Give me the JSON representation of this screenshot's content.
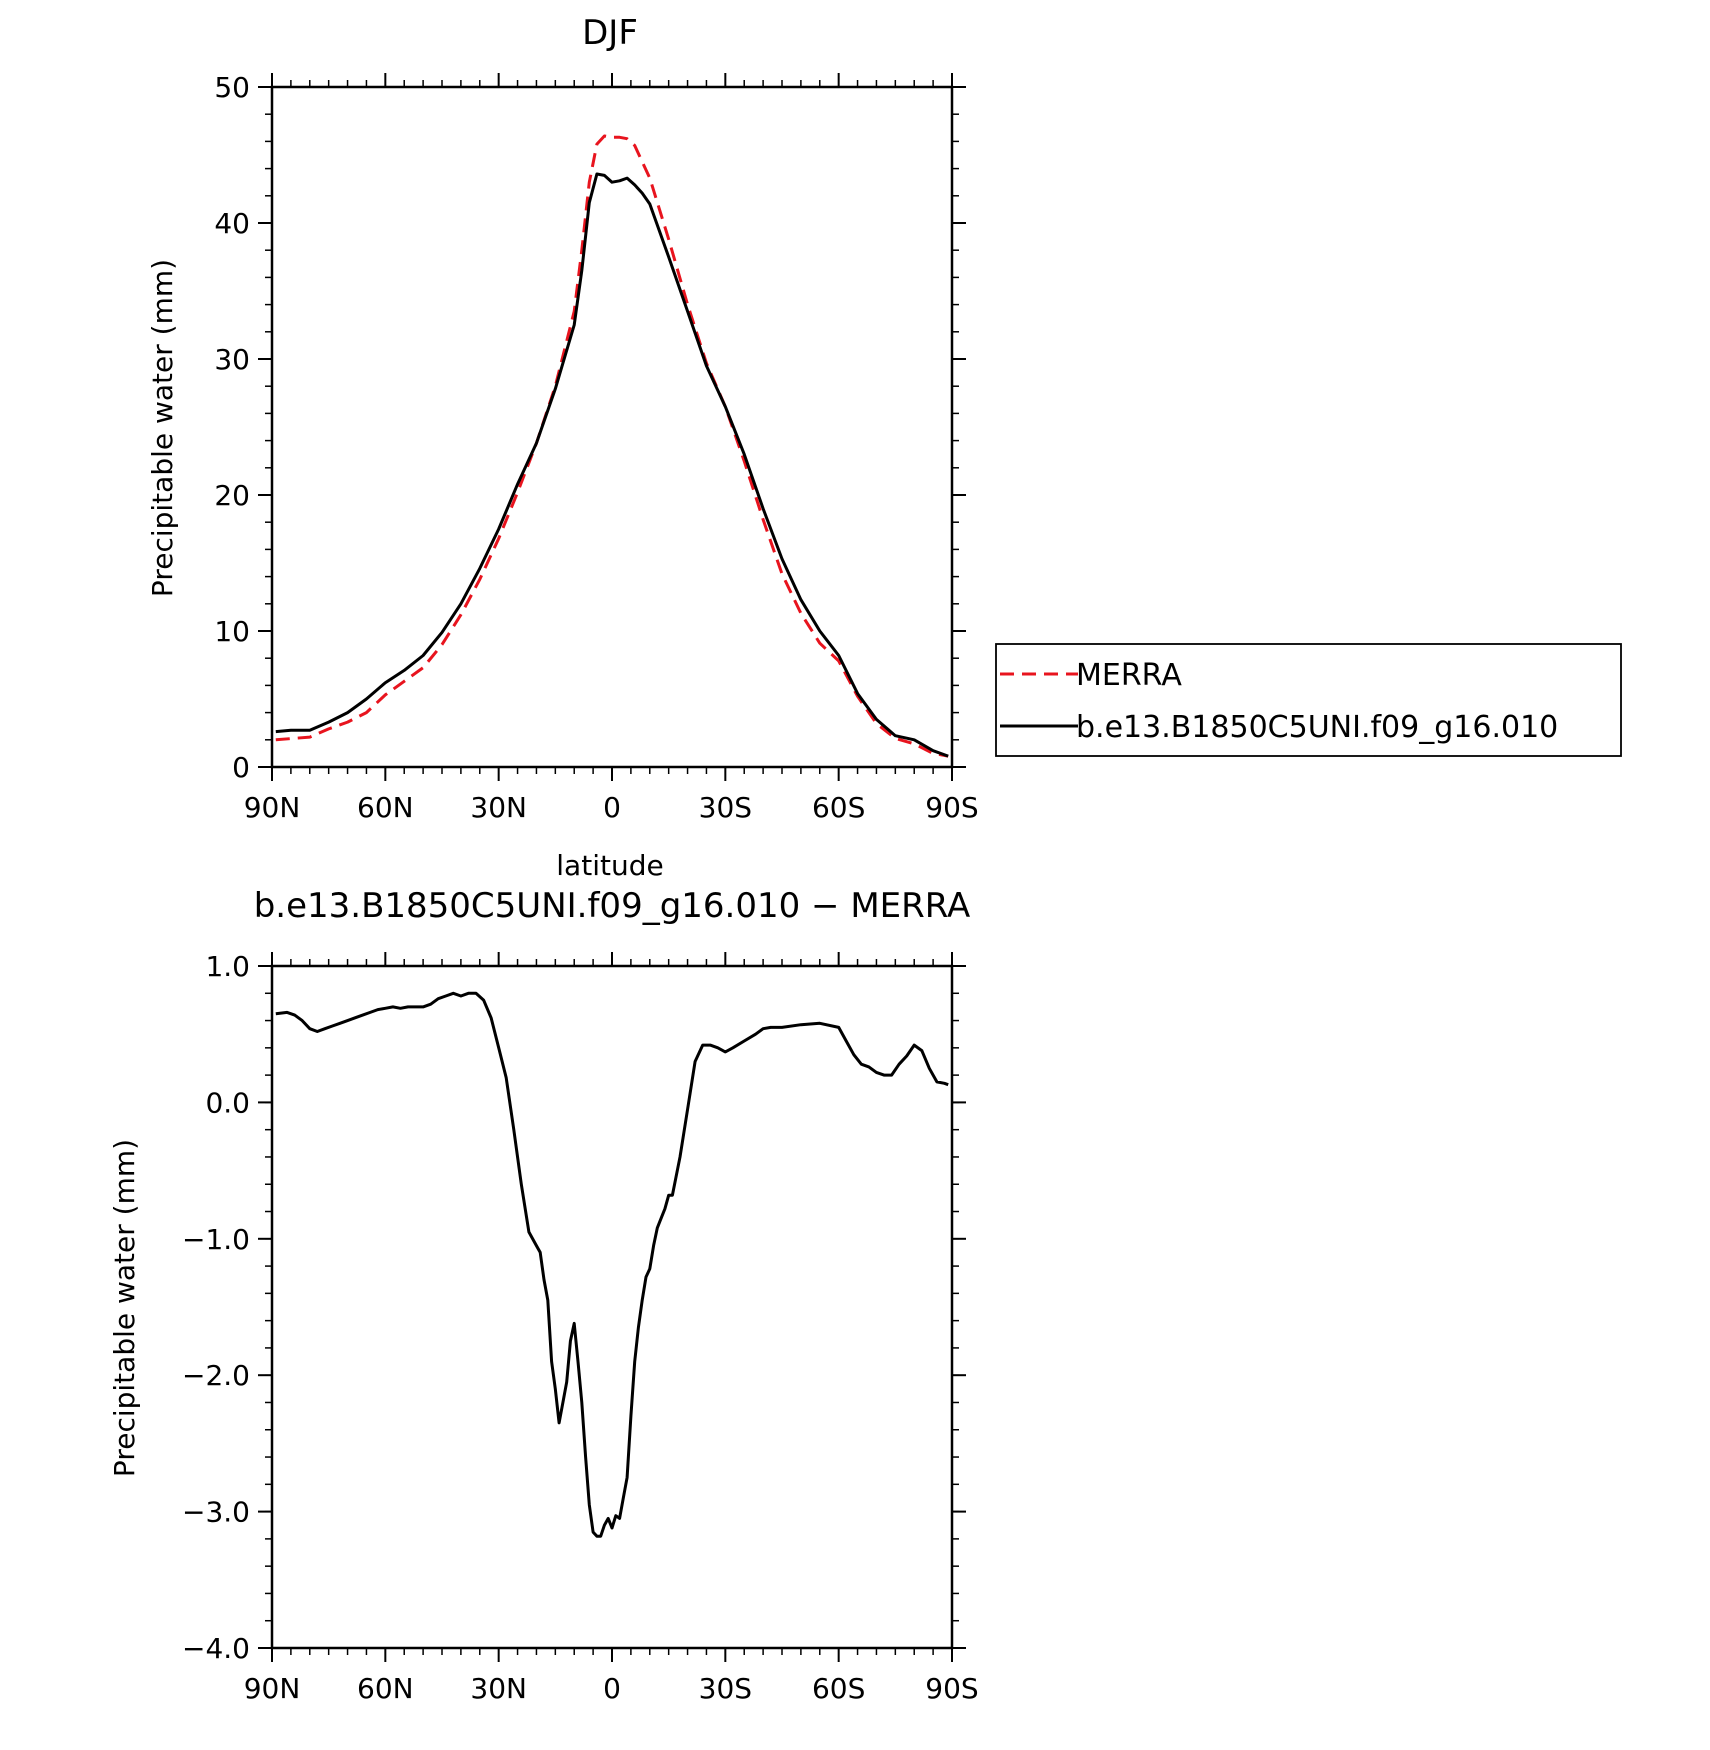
{
  "chart_data": [
    {
      "type": "line",
      "title": "DJF",
      "xlabel": "latitude",
      "ylabel": "Precipitable water (mm)",
      "xlim": [
        90,
        -90
      ],
      "ylim": [
        0,
        50
      ],
      "xticks": [
        90,
        60,
        30,
        0,
        -30,
        -60,
        -90
      ],
      "xtick_labels": [
        "90N",
        "60N",
        "30N",
        "0",
        "30S",
        "60S",
        "90S"
      ],
      "yticks": [
        0,
        10,
        20,
        30,
        40,
        50
      ],
      "ytick_labels": [
        "0",
        "10",
        "20",
        "30",
        "40",
        "50"
      ],
      "grid": false,
      "legend_position": "right",
      "series": [
        {
          "name": "MERRA",
          "color": "#e8141e",
          "dash": "dashed",
          "x": [
            89,
            80,
            75,
            70,
            65,
            60,
            55,
            50,
            45,
            40,
            35,
            30,
            25,
            20,
            15,
            10,
            8,
            6,
            4,
            2,
            0,
            -2,
            -4,
            -6,
            -8,
            -10,
            -15,
            -20,
            -25,
            -30,
            -35,
            -40,
            -45,
            -50,
            -55,
            -60,
            -65,
            -70,
            -75,
            -80,
            -85,
            -89
          ],
          "y": [
            2.0,
            2.2,
            2.8,
            3.3,
            4.0,
            5.3,
            6.3,
            7.3,
            9.0,
            11.2,
            13.8,
            16.8,
            20.2,
            23.8,
            28.0,
            33.5,
            38.0,
            43.0,
            45.8,
            46.4,
            46.3,
            46.3,
            46.2,
            45.7,
            44.5,
            43.3,
            38.8,
            34.0,
            29.7,
            26.5,
            22.5,
            18.2,
            14.2,
            11.3,
            9.1,
            7.8,
            5.2,
            3.2,
            2.1,
            1.7,
            1.0,
            0.8
          ]
        },
        {
          "name": "b.e13.B1850C5UNI.f09_g16.010",
          "color": "#000000",
          "dash": "solid",
          "x": [
            89,
            85,
            80,
            75,
            70,
            65,
            60,
            55,
            50,
            45,
            40,
            35,
            30,
            25,
            20,
            15,
            10,
            8,
            6,
            4,
            2,
            0,
            -2,
            -4,
            -6,
            -8,
            -10,
            -15,
            -20,
            -25,
            -30,
            -35,
            -40,
            -45,
            -50,
            -55,
            -60,
            -65,
            -70,
            -75,
            -80,
            -85,
            -89
          ],
          "y": [
            2.6,
            2.7,
            2.7,
            3.3,
            4.0,
            5.0,
            6.2,
            7.1,
            8.2,
            9.9,
            12.0,
            14.6,
            17.5,
            20.8,
            23.8,
            27.8,
            32.5,
            36.5,
            41.5,
            43.6,
            43.5,
            43.0,
            43.1,
            43.3,
            42.8,
            42.2,
            41.4,
            37.5,
            33.5,
            29.5,
            26.5,
            23.0,
            19.0,
            15.3,
            12.3,
            10.0,
            8.2,
            5.4,
            3.5,
            2.3,
            2.0,
            1.2,
            0.8
          ]
        }
      ]
    },
    {
      "type": "line",
      "title": "b.e13.B1850C5UNI.f09_g16.010 − MERRA",
      "xlabel": "latitude",
      "ylabel": "Precipitable water (mm)",
      "xlim": [
        90,
        -90
      ],
      "ylim": [
        -4.0,
        1.0
      ],
      "xticks": [
        90,
        60,
        30,
        0,
        -30,
        -60,
        -90
      ],
      "xtick_labels": [
        "90N",
        "60N",
        "30N",
        "0",
        "30S",
        "60S",
        "90S"
      ],
      "yticks": [
        1.0,
        0.0,
        -1.0,
        -2.0,
        -3.0,
        -4.0
      ],
      "ytick_labels": [
        "1.0",
        "0.0",
        "−1.0",
        "−2.0",
        "−3.0",
        "−4.0"
      ],
      "grid": false,
      "series": [
        {
          "color": "#000000",
          "dash": "solid",
          "x": [
            89,
            86,
            84,
            82,
            80,
            78,
            76,
            74,
            72,
            70,
            68,
            66,
            64,
            62,
            60,
            58,
            56,
            54,
            52,
            50,
            48,
            46,
            44,
            42,
            40,
            38,
            36,
            34,
            32,
            30,
            28,
            26,
            24,
            22,
            20,
            19,
            18,
            17,
            16,
            15,
            14,
            13,
            12,
            11,
            10,
            9,
            8,
            7,
            6,
            5,
            4,
            3,
            2,
            1,
            0,
            -1,
            -2,
            -3,
            -4,
            -5,
            -6,
            -7,
            -8,
            -9,
            -10,
            -11,
            -12,
            -13,
            -14,
            -15,
            -16,
            -18,
            -20,
            -22,
            -24,
            -26,
            -28,
            -30,
            -32,
            -35,
            -38,
            -40,
            -42,
            -45,
            -50,
            -55,
            -60,
            -62,
            -64,
            -66,
            -68,
            -70,
            -72,
            -74,
            -76,
            -78,
            -80,
            -82,
            -84,
            -86,
            -88,
            -89
          ],
          "y": [
            0.65,
            0.66,
            0.64,
            0.6,
            0.54,
            0.52,
            0.54,
            0.56,
            0.58,
            0.6,
            0.62,
            0.64,
            0.66,
            0.68,
            0.69,
            0.7,
            0.69,
            0.7,
            0.7,
            0.7,
            0.72,
            0.76,
            0.78,
            0.8,
            0.78,
            0.8,
            0.8,
            0.75,
            0.62,
            0.4,
            0.18,
            -0.2,
            -0.6,
            -0.95,
            -1.05,
            -1.1,
            -1.3,
            -1.45,
            -1.9,
            -2.1,
            -2.35,
            -2.2,
            -2.05,
            -1.75,
            -1.62,
            -1.9,
            -2.2,
            -2.6,
            -2.95,
            -3.15,
            -3.18,
            -3.18,
            -3.1,
            -3.05,
            -3.12,
            -3.03,
            -3.05,
            -2.9,
            -2.75,
            -2.3,
            -1.9,
            -1.65,
            -1.45,
            -1.28,
            -1.22,
            -1.05,
            -0.92,
            -0.85,
            -0.78,
            -0.68,
            -0.68,
            -0.4,
            -0.05,
            0.3,
            0.42,
            0.42,
            0.4,
            0.37,
            0.4,
            0.45,
            0.5,
            0.54,
            0.55,
            0.55,
            0.57,
            0.58,
            0.55,
            0.45,
            0.35,
            0.28,
            0.26,
            0.22,
            0.2,
            0.2,
            0.28,
            0.34,
            0.42,
            0.38,
            0.25,
            0.15,
            0.14,
            0.13
          ]
        }
      ]
    }
  ]
}
